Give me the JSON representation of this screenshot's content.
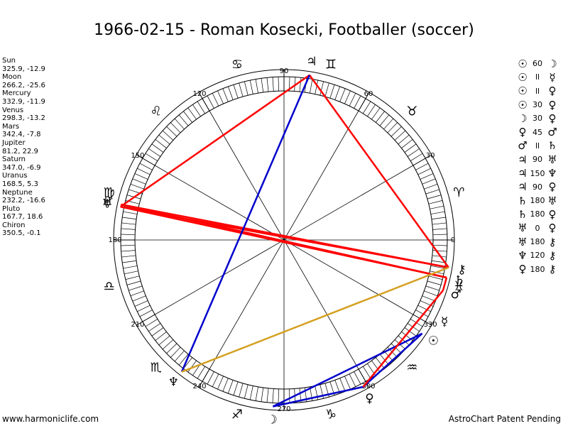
{
  "title": "1966-02-15 - Roman Kosecki, Footballer (soccer)",
  "footer": {
    "left": "www.harmoniclife.com",
    "right": "AstroChart Patent Pending"
  },
  "planets": [
    {
      "name": "Sun",
      "coords": "325.9, -12.9",
      "lon": 325.9,
      "glyph": "☉"
    },
    {
      "name": "Moon",
      "coords": "266.2, -25.6",
      "lon": 266.2,
      "glyph": "☽"
    },
    {
      "name": "Mercury",
      "coords": "332.9, -11.9",
      "lon": 332.9,
      "glyph": "☿"
    },
    {
      "name": "Venus",
      "coords": "298.3, -13.2",
      "lon": 298.3,
      "glyph": "♀"
    },
    {
      "name": "Mars",
      "coords": "342.4, -7.8",
      "lon": 342.4,
      "glyph": "♂"
    },
    {
      "name": "Jupiter",
      "coords": "81.2, 22.9",
      "lon": 81.2,
      "glyph": "♃"
    },
    {
      "name": "Saturn",
      "coords": "347.0, -6.9",
      "lon": 347.0,
      "glyph": "♄"
    },
    {
      "name": "Uranus",
      "coords": "168.5, 5.3",
      "lon": 168.5,
      "glyph": "♅"
    },
    {
      "name": "Neptune",
      "coords": "232.2, -16.6",
      "lon": 232.2,
      "glyph": "♆"
    },
    {
      "name": "Pluto",
      "coords": "167.7, 18.6",
      "lon": 167.7,
      "glyph": "♇"
    },
    {
      "name": "Chiron",
      "coords": "350.5, -0.1",
      "lon": 350.5,
      "glyph": "⚷"
    }
  ],
  "aspects": [
    {
      "p1": "☉",
      "angle": "60",
      "p2": "☽"
    },
    {
      "p1": "☉",
      "angle": "ll",
      "p2": "☿"
    },
    {
      "p1": "☉",
      "angle": "ll",
      "p2": "♀"
    },
    {
      "p1": "☉",
      "angle": "30",
      "p2": "♀"
    },
    {
      "p1": "☽",
      "angle": "30",
      "p2": "♀"
    },
    {
      "p1": "♀",
      "angle": "45",
      "p2": "♂"
    },
    {
      "p1": "♂",
      "angle": "ll",
      "p2": "♄"
    },
    {
      "p1": "♃",
      "angle": "90",
      "p2": "♅"
    },
    {
      "p1": "♃",
      "angle": "150",
      "p2": "♆"
    },
    {
      "p1": "♃",
      "angle": "90",
      "p2": "♀"
    },
    {
      "p1": "♄",
      "angle": "180",
      "p2": "♅"
    },
    {
      "p1": "♄",
      "angle": "180",
      "p2": "♀"
    },
    {
      "p1": "♅",
      "angle": "0",
      "p2": "♀"
    },
    {
      "p1": "♅",
      "angle": "180",
      "p2": "⚷"
    },
    {
      "p1": "♆",
      "angle": "120",
      "p2": "⚷"
    },
    {
      "p1": "♀",
      "angle": "180",
      "p2": "⚷"
    }
  ],
  "degree_labels": [
    "0",
    "30",
    "60",
    "90",
    "120",
    "150",
    "180",
    "210",
    "240",
    "270",
    "300",
    "330"
  ],
  "signs": [
    {
      "glyph": "♈",
      "lon": 15
    },
    {
      "glyph": "♉",
      "lon": 45
    },
    {
      "glyph": "♊",
      "lon": 75
    },
    {
      "glyph": "♋",
      "lon": 105
    },
    {
      "glyph": "♌",
      "lon": 135
    },
    {
      "glyph": "♍",
      "lon": 165
    },
    {
      "glyph": "♎",
      "lon": 195
    },
    {
      "glyph": "♏",
      "lon": 225
    },
    {
      "glyph": "♐",
      "lon": 255
    },
    {
      "glyph": "♑",
      "lon": 285
    },
    {
      "glyph": "♒",
      "lon": 315
    },
    {
      "glyph": "♓",
      "lon": 345
    }
  ],
  "aspect_lines": [
    {
      "from": "Jupiter",
      "to": "Uranus",
      "color": "#ff0000"
    },
    {
      "from": "Jupiter",
      "to": "Chiron",
      "color": "#ff0000"
    },
    {
      "from": "Uranus",
      "to": "Saturn",
      "color": "#ff0000"
    },
    {
      "from": "Uranus",
      "to": "Chiron",
      "color": "#ff0000"
    },
    {
      "from": "Pluto",
      "to": "Saturn",
      "color": "#ff0000"
    },
    {
      "from": "Pluto",
      "to": "Chiron",
      "color": "#ff0000"
    },
    {
      "from": "Jupiter",
      "to": "Neptune",
      "color": "#0000cc"
    },
    {
      "from": "Sun",
      "to": "Moon",
      "color": "#0000cc"
    },
    {
      "from": "Sun",
      "to": "Venus",
      "color": "#0000cc"
    },
    {
      "from": "Moon",
      "to": "Venus",
      "color": "#0000cc"
    },
    {
      "from": "Neptune",
      "to": "Chiron",
      "color": "#d4a020"
    },
    {
      "from": "Venus",
      "to": "Mars",
      "color": "#ff0000"
    },
    {
      "from": "Mars",
      "to": "Saturn",
      "color": "#ff0000"
    }
  ],
  "colors": {
    "hard": "#ff0000",
    "soft": "#0000cc",
    "minor": "#d4a020"
  }
}
